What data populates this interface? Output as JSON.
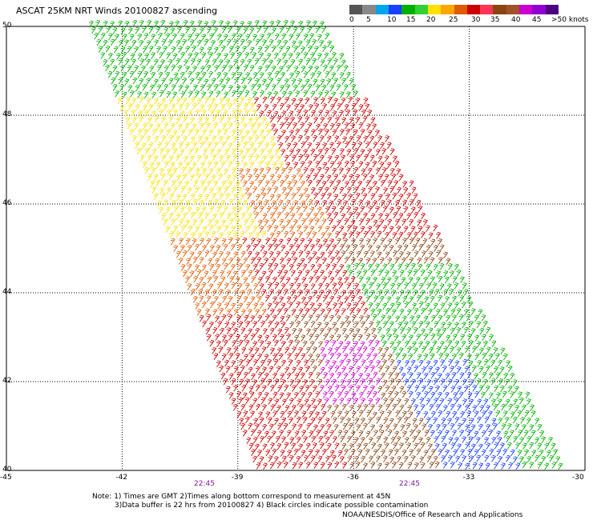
{
  "title": "ASCAT 25KM NRT Winds 20100827 ascending",
  "legend": {
    "colors": [
      "#555555",
      "#888888",
      "#00a6e8",
      "#1a40ff",
      "#00b000",
      "#33d233",
      "#ffe000",
      "#ffa500",
      "#e05a00",
      "#cc0000",
      "#ff3355",
      "#8b4513",
      "#a0522d",
      "#cc00cc",
      "#9400d3",
      "#4b0082"
    ],
    "labels": [
      "0",
      "5",
      "10",
      "15",
      "20",
      "25",
      "30",
      "35",
      "40",
      "45",
      ">50 knots"
    ]
  },
  "axes": {
    "lat_labels": [
      "50",
      "48",
      "46",
      "44",
      "42",
      "40"
    ],
    "lon_labels": [
      "-45",
      "-42",
      "-39",
      "-36",
      "-33",
      "-30"
    ]
  },
  "pass_times": [
    "22:45",
    "22:45"
  ],
  "notes": [
    "Note: 1) Times are GMT 2)Times along bottom correspond to measurement at 45N",
    "3)Data buffer is 22 hrs from 20100827 4) Black circles indicate possible contamination"
  ],
  "credit": "NOAA/NESDIS/Office of Research and Applications",
  "wind_field": {
    "swath_lat_range": [
      40,
      50
    ],
    "swath_lon_range": [
      -45,
      -30
    ],
    "dominant_colors_by_region": {
      "north": "#00b000",
      "upper_middle": "#ffe000",
      "middle": "#e05a00",
      "central": "#cc0000",
      "southwest": "#8b4513",
      "core": "#cc00cc",
      "east": "#00b000",
      "southeast": "#1a40ff"
    }
  }
}
